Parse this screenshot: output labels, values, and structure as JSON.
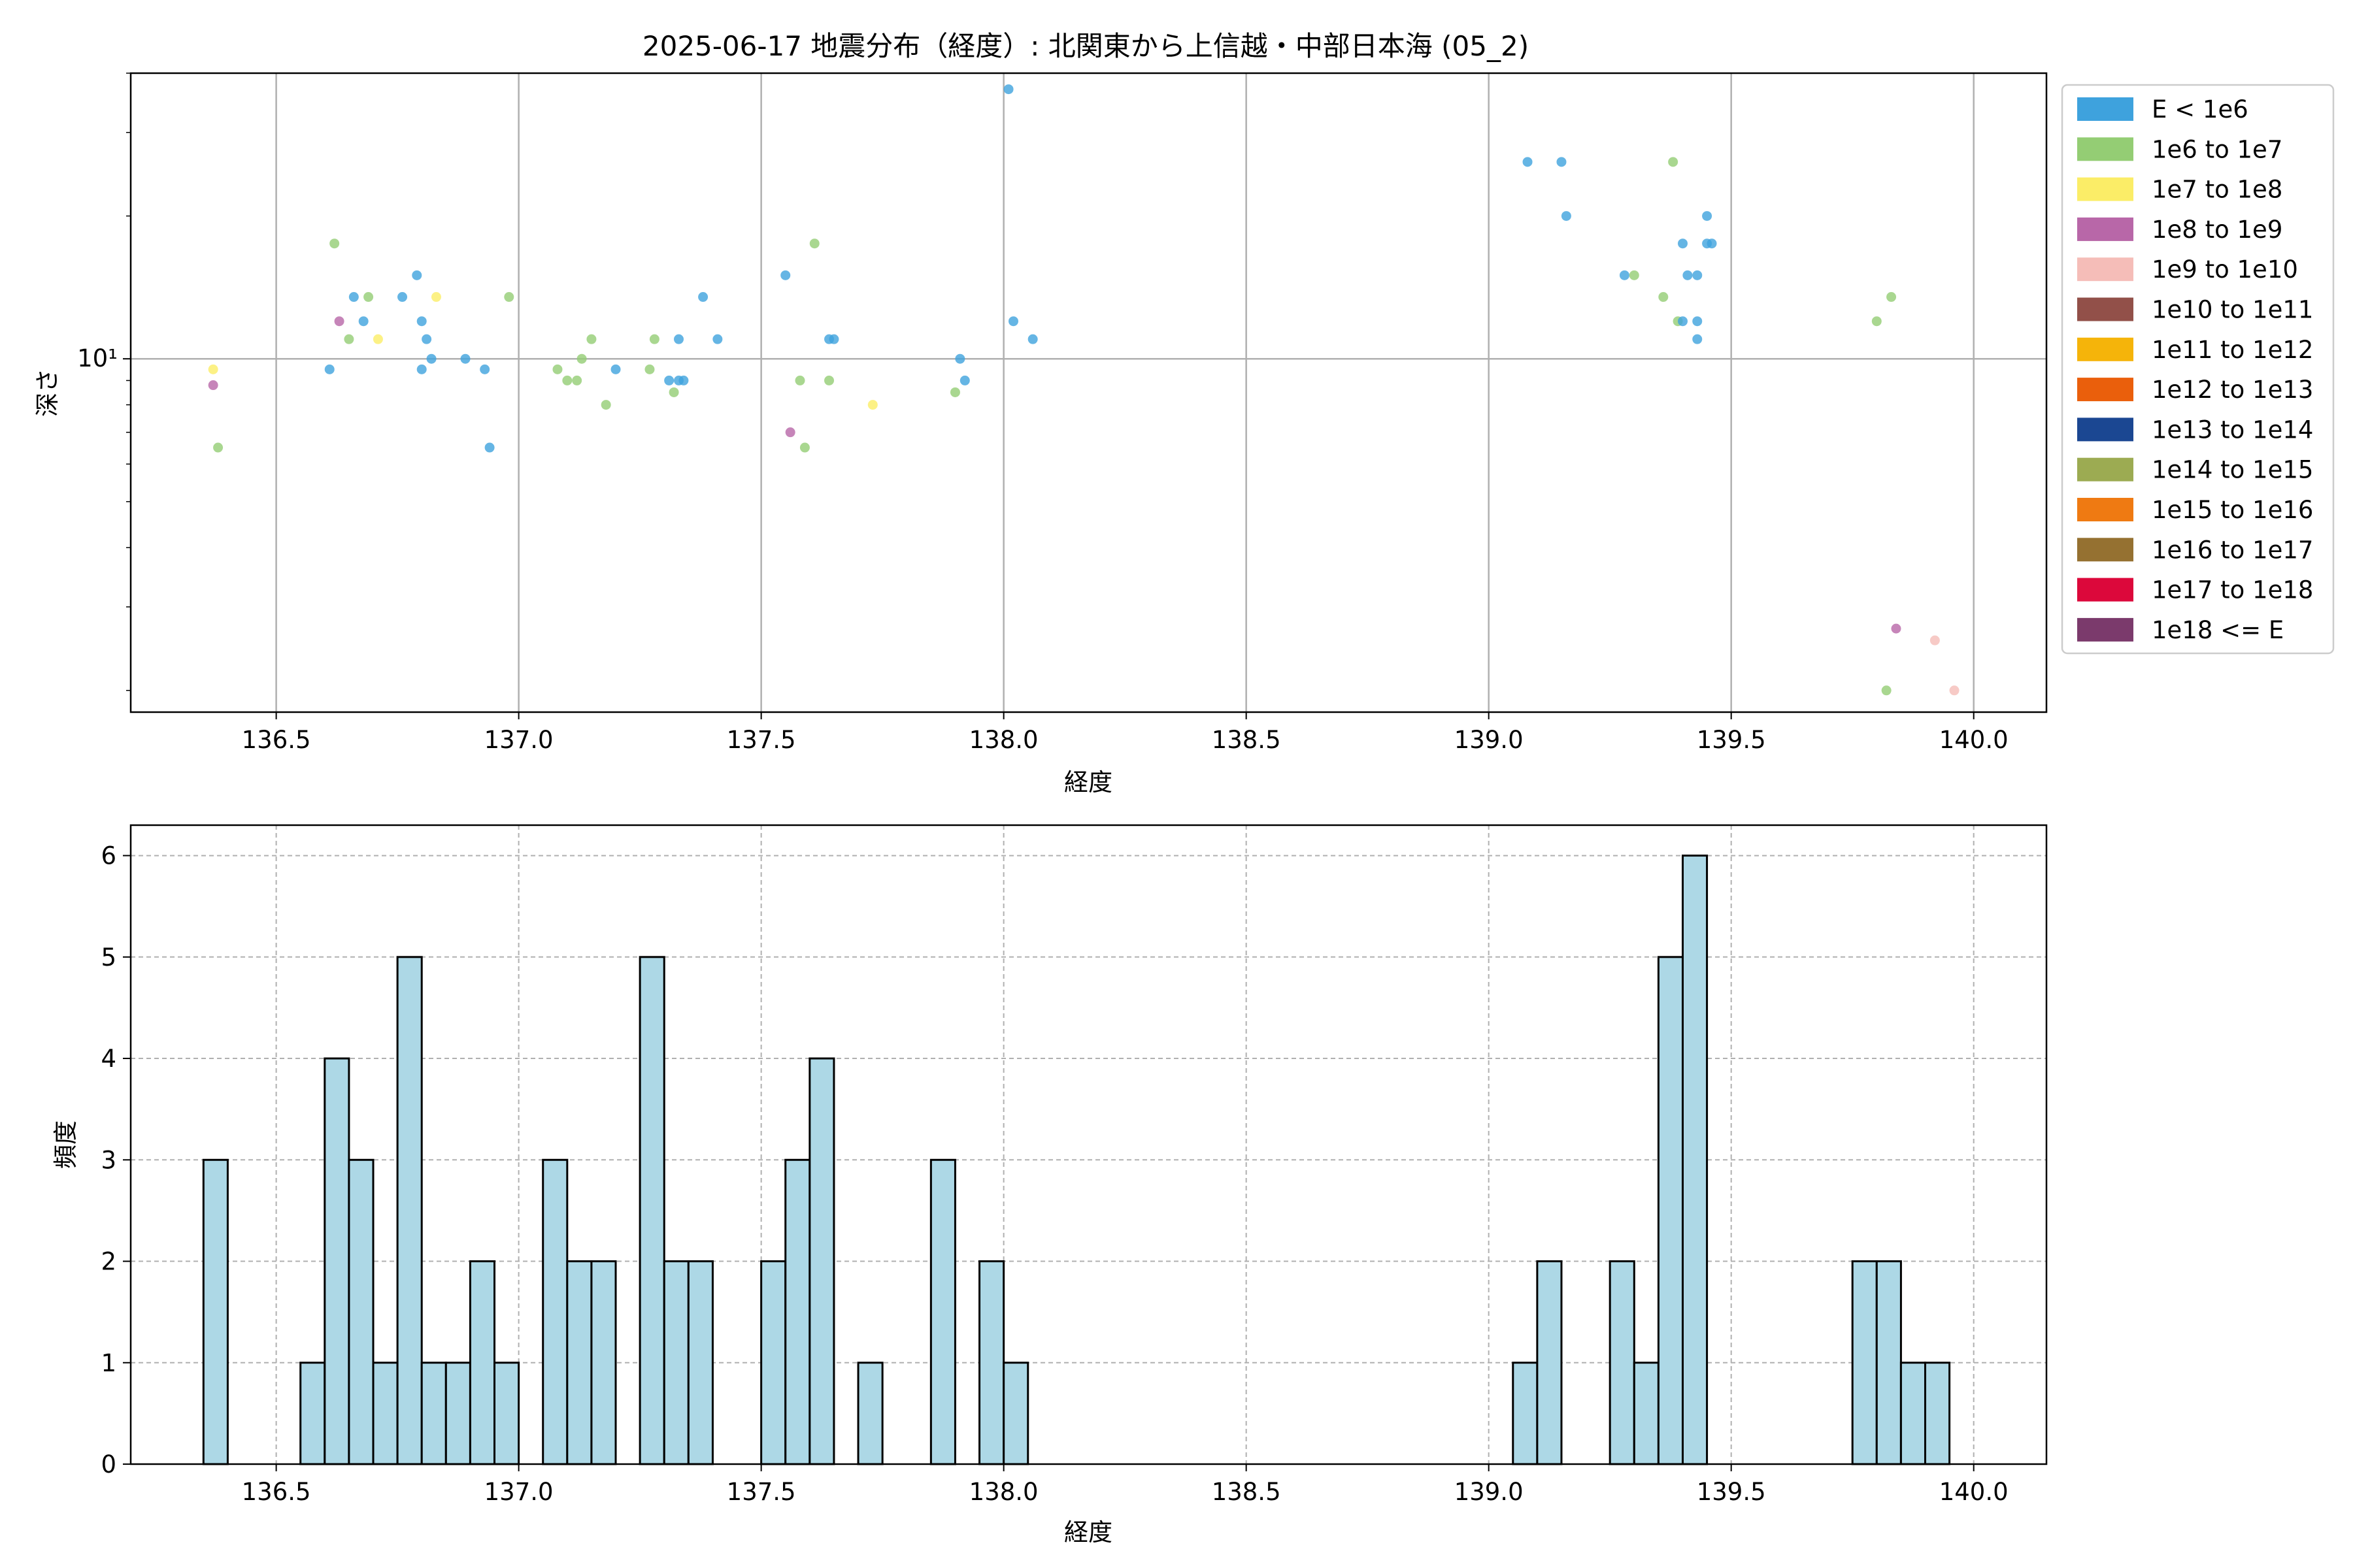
{
  "chart_data": [
    {
      "type": "scatter",
      "title": "2025-06-17 地震分布（経度）: 北関東から上信越・中部日本海 (05_2)",
      "xlabel": "経度",
      "ylabel": "深さ",
      "xlim": [
        136.2,
        140.15
      ],
      "ylim": [
        1.8,
        40
      ],
      "yscale": "log",
      "grid": true,
      "x_ticks": [
        136.5,
        137.0,
        137.5,
        138.0,
        138.5,
        139.0,
        139.5,
        140.0
      ],
      "x_tick_labels": [
        "136.5",
        "137.0",
        "137.5",
        "138.0",
        "138.5",
        "139.0",
        "139.5",
        "140.0"
      ],
      "y_tick_labels": [
        "10¹"
      ],
      "legend_position": "outside-right",
      "legend": [
        {
          "label": "E < 1e6",
          "color": "#3ea2dd"
        },
        {
          "label": "1e6 to 1e7",
          "color": "#94cd74"
        },
        {
          "label": "1e7 to 1e8",
          "color": "#fbed67"
        },
        {
          "label": "1e8 to 1e9",
          "color": "#b867a8"
        },
        {
          "label": "1e9 to 1e10",
          "color": "#f5bdb8"
        },
        {
          "label": "1e10 to 1e11",
          "color": "#925049"
        },
        {
          "label": "1e11 to 1e12",
          "color": "#f5b40a"
        },
        {
          "label": "1e12 to 1e13",
          "color": "#ea5f0c"
        },
        {
          "label": "1e13 to 1e14",
          "color": "#1b4792"
        },
        {
          "label": "1e14 to 1e15",
          "color": "#9cab52"
        },
        {
          "label": "1e15 to 1e16",
          "color": "#ef7a12"
        },
        {
          "label": "1e16 to 1e17",
          "color": "#957131"
        },
        {
          "label": "1e17 to 1e18",
          "color": "#dc083b"
        },
        {
          "label": "1e18 <= E",
          "color": "#7b3a6c"
        }
      ],
      "points": [
        {
          "x": 136.37,
          "y": 9.5,
          "c": 2
        },
        {
          "x": 136.37,
          "y": 8.8,
          "c": 3
        },
        {
          "x": 136.38,
          "y": 6.5,
          "c": 1
        },
        {
          "x": 136.61,
          "y": 9.5,
          "c": 0
        },
        {
          "x": 136.62,
          "y": 17.5,
          "c": 1
        },
        {
          "x": 136.63,
          "y": 12.0,
          "c": 3
        },
        {
          "x": 136.65,
          "y": 11.0,
          "c": 1
        },
        {
          "x": 136.66,
          "y": 13.5,
          "c": 0
        },
        {
          "x": 136.68,
          "y": 12.0,
          "c": 0
        },
        {
          "x": 136.69,
          "y": 13.5,
          "c": 1
        },
        {
          "x": 136.71,
          "y": 11.0,
          "c": 2
        },
        {
          "x": 136.76,
          "y": 13.5,
          "c": 0
        },
        {
          "x": 136.79,
          "y": 15.0,
          "c": 0
        },
        {
          "x": 136.8,
          "y": 9.5,
          "c": 0
        },
        {
          "x": 136.8,
          "y": 12.0,
          "c": 0
        },
        {
          "x": 136.81,
          "y": 11.0,
          "c": 0
        },
        {
          "x": 136.82,
          "y": 10.0,
          "c": 0
        },
        {
          "x": 136.83,
          "y": 13.5,
          "c": 2
        },
        {
          "x": 136.89,
          "y": 10.0,
          "c": 0
        },
        {
          "x": 136.93,
          "y": 9.5,
          "c": 0
        },
        {
          "x": 136.94,
          "y": 6.5,
          "c": 0
        },
        {
          "x": 136.98,
          "y": 13.5,
          "c": 1
        },
        {
          "x": 137.08,
          "y": 9.5,
          "c": 1
        },
        {
          "x": 137.1,
          "y": 9.0,
          "c": 1
        },
        {
          "x": 137.12,
          "y": 9.0,
          "c": 1
        },
        {
          "x": 137.13,
          "y": 10.0,
          "c": 1
        },
        {
          "x": 137.15,
          "y": 11.0,
          "c": 1
        },
        {
          "x": 137.18,
          "y": 8.0,
          "c": 1
        },
        {
          "x": 137.2,
          "y": 9.5,
          "c": 0
        },
        {
          "x": 137.27,
          "y": 9.5,
          "c": 1
        },
        {
          "x": 137.28,
          "y": 11.0,
          "c": 1
        },
        {
          "x": 137.31,
          "y": 9.0,
          "c": 0
        },
        {
          "x": 137.32,
          "y": 8.5,
          "c": 1
        },
        {
          "x": 137.33,
          "y": 9.0,
          "c": 0
        },
        {
          "x": 137.33,
          "y": 11.0,
          "c": 0
        },
        {
          "x": 137.34,
          "y": 9.0,
          "c": 0
        },
        {
          "x": 137.38,
          "y": 13.5,
          "c": 0
        },
        {
          "x": 137.41,
          "y": 11.0,
          "c": 0
        },
        {
          "x": 137.55,
          "y": 15.0,
          "c": 0
        },
        {
          "x": 137.56,
          "y": 7.0,
          "c": 3
        },
        {
          "x": 137.58,
          "y": 9.0,
          "c": 1
        },
        {
          "x": 137.59,
          "y": 6.5,
          "c": 1
        },
        {
          "x": 137.61,
          "y": 17.5,
          "c": 1
        },
        {
          "x": 137.64,
          "y": 9.0,
          "c": 1
        },
        {
          "x": 137.64,
          "y": 11.0,
          "c": 0
        },
        {
          "x": 137.65,
          "y": 11.0,
          "c": 0
        },
        {
          "x": 137.73,
          "y": 8.0,
          "c": 2
        },
        {
          "x": 137.9,
          "y": 8.5,
          "c": 1
        },
        {
          "x": 137.91,
          "y": 10.0,
          "c": 0
        },
        {
          "x": 137.92,
          "y": 9.0,
          "c": 0
        },
        {
          "x": 138.01,
          "y": 37.0,
          "c": 0
        },
        {
          "x": 138.02,
          "y": 12.0,
          "c": 0
        },
        {
          "x": 138.06,
          "y": 11.0,
          "c": 0
        },
        {
          "x": 139.08,
          "y": 26.0,
          "c": 0
        },
        {
          "x": 139.15,
          "y": 26.0,
          "c": 0
        },
        {
          "x": 139.16,
          "y": 20.0,
          "c": 0
        },
        {
          "x": 139.28,
          "y": 15.0,
          "c": 0
        },
        {
          "x": 139.3,
          "y": 15.0,
          "c": 1
        },
        {
          "x": 139.36,
          "y": 13.5,
          "c": 1
        },
        {
          "x": 139.38,
          "y": 26.0,
          "c": 1
        },
        {
          "x": 139.39,
          "y": 12.0,
          "c": 1
        },
        {
          "x": 139.4,
          "y": 12.0,
          "c": 0
        },
        {
          "x": 139.4,
          "y": 17.5,
          "c": 0
        },
        {
          "x": 139.41,
          "y": 15.0,
          "c": 0
        },
        {
          "x": 139.43,
          "y": 12.0,
          "c": 0
        },
        {
          "x": 139.43,
          "y": 11.0,
          "c": 0
        },
        {
          "x": 139.43,
          "y": 15.0,
          "c": 0
        },
        {
          "x": 139.45,
          "y": 17.5,
          "c": 0
        },
        {
          "x": 139.45,
          "y": 20.0,
          "c": 0
        },
        {
          "x": 139.46,
          "y": 17.5,
          "c": 0
        },
        {
          "x": 139.8,
          "y": 12.0,
          "c": 1
        },
        {
          "x": 139.82,
          "y": 2.0,
          "c": 1
        },
        {
          "x": 139.83,
          "y": 13.5,
          "c": 1
        },
        {
          "x": 139.84,
          "y": 2.7,
          "c": 3
        },
        {
          "x": 139.92,
          "y": 2.55,
          "c": 4
        },
        {
          "x": 139.96,
          "y": 2.0,
          "c": 4
        }
      ]
    },
    {
      "type": "bar",
      "xlabel": "経度",
      "ylabel": "頻度",
      "xlim": [
        136.2,
        140.15
      ],
      "ylim": [
        0,
        6.3
      ],
      "grid": true,
      "bar_color": "#add8e6",
      "bar_edge_color": "#000000",
      "bin_width": 0.05,
      "x_ticks": [
        136.5,
        137.0,
        137.5,
        138.0,
        138.5,
        139.0,
        139.5,
        140.0
      ],
      "x_tick_labels": [
        "136.5",
        "137.0",
        "137.5",
        "138.0",
        "138.5",
        "139.0",
        "139.5",
        "140.0"
      ],
      "y_ticks": [
        0,
        1,
        2,
        3,
        4,
        5,
        6
      ],
      "y_tick_labels": [
        "0",
        "1",
        "2",
        "3",
        "4",
        "5",
        "6"
      ],
      "bins": [
        {
          "x": 136.375,
          "count": 3
        },
        {
          "x": 136.575,
          "count": 1
        },
        {
          "x": 136.625,
          "count": 4
        },
        {
          "x": 136.675,
          "count": 3
        },
        {
          "x": 136.725,
          "count": 1
        },
        {
          "x": 136.775,
          "count": 5
        },
        {
          "x": 136.825,
          "count": 1
        },
        {
          "x": 136.875,
          "count": 1
        },
        {
          "x": 136.925,
          "count": 2
        },
        {
          "x": 136.975,
          "count": 1
        },
        {
          "x": 137.075,
          "count": 3
        },
        {
          "x": 137.125,
          "count": 2
        },
        {
          "x": 137.175,
          "count": 2
        },
        {
          "x": 137.275,
          "count": 5
        },
        {
          "x": 137.325,
          "count": 2
        },
        {
          "x": 137.375,
          "count": 2
        },
        {
          "x": 137.525,
          "count": 2
        },
        {
          "x": 137.575,
          "count": 3
        },
        {
          "x": 137.625,
          "count": 4
        },
        {
          "x": 137.725,
          "count": 1
        },
        {
          "x": 137.875,
          "count": 3
        },
        {
          "x": 137.975,
          "count": 2
        },
        {
          "x": 138.025,
          "count": 1
        },
        {
          "x": 139.075,
          "count": 1
        },
        {
          "x": 139.125,
          "count": 2
        },
        {
          "x": 139.275,
          "count": 2
        },
        {
          "x": 139.325,
          "count": 1
        },
        {
          "x": 139.375,
          "count": 5
        },
        {
          "x": 139.425,
          "count": 6
        },
        {
          "x": 139.775,
          "count": 2
        },
        {
          "x": 139.825,
          "count": 2
        },
        {
          "x": 139.875,
          "count": 1
        },
        {
          "x": 139.925,
          "count": 1
        }
      ]
    }
  ]
}
